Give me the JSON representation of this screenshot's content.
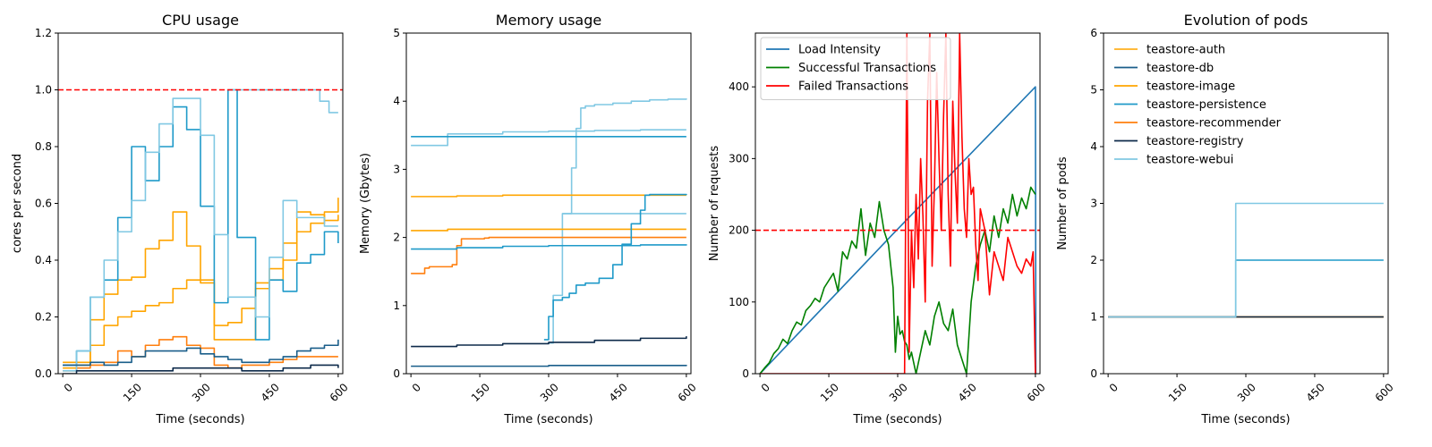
{
  "chart_data": [
    {
      "type": "line",
      "title": "CPU usage",
      "xlabel": "Time (seconds)",
      "ylabel": "cores per second",
      "xlim": [
        -10,
        610
      ],
      "ylim": [
        0,
        1.2
      ],
      "xticks": [
        0,
        150,
        300,
        450,
        600
      ],
      "yticks": [
        0,
        0.2,
        0.4,
        0.6,
        0.8,
        1.0,
        1.2
      ],
      "ytick_labels": [
        "0.0",
        "0.2",
        "0.4",
        "0.6",
        "0.8",
        "1.0",
        "1.2"
      ],
      "step": true,
      "hline": {
        "y": 1.0,
        "color": "#ff0000"
      },
      "legend": null,
      "series": [
        {
          "color": "#ffa500",
          "x": [
            0,
            30,
            60,
            90,
            120,
            150,
            180,
            210,
            240,
            270,
            300,
            330,
            360,
            390,
            420,
            450,
            480,
            510,
            540,
            570,
            600
          ],
          "y": [
            0.04,
            0.04,
            0.19,
            0.28,
            0.33,
            0.34,
            0.44,
            0.47,
            0.57,
            0.45,
            0.33,
            0.12,
            0.12,
            0.12,
            0.32,
            0.33,
            0.4,
            0.57,
            0.56,
            0.54,
            0.56
          ]
        },
        {
          "color": "#ffa500",
          "x": [
            0,
            30,
            60,
            90,
            120,
            150,
            180,
            210,
            240,
            270,
            300,
            330,
            360,
            390,
            420,
            450,
            480,
            510,
            540,
            570,
            600
          ],
          "y": [
            0.02,
            0.03,
            0.1,
            0.17,
            0.2,
            0.22,
            0.24,
            0.25,
            0.3,
            0.33,
            0.32,
            0.17,
            0.18,
            0.23,
            0.3,
            0.37,
            0.46,
            0.5,
            0.53,
            0.57,
            0.62
          ]
        },
        {
          "color": "#ff7f0e",
          "x": [
            0,
            30,
            60,
            90,
            120,
            150,
            180,
            210,
            240,
            270,
            300,
            330,
            360,
            390,
            420,
            450,
            480,
            510,
            540,
            570,
            600
          ],
          "y": [
            0.01,
            0.02,
            0.03,
            0.04,
            0.08,
            0.06,
            0.1,
            0.12,
            0.13,
            0.1,
            0.09,
            0.03,
            0.02,
            0.03,
            0.03,
            0.04,
            0.05,
            0.06,
            0.06,
            0.06,
            0.06
          ]
        },
        {
          "color": "#1f9ac9",
          "x": [
            0,
            30,
            60,
            90,
            120,
            150,
            180,
            210,
            240,
            270,
            300,
            330,
            355,
            360,
            380,
            420,
            450,
            480,
            510,
            540,
            570,
            600
          ],
          "y": [
            0.03,
            0.08,
            0.27,
            0.33,
            0.55,
            0.8,
            0.68,
            0.8,
            0.94,
            0.86,
            0.59,
            0.25,
            0.25,
            1.0,
            0.48,
            0.12,
            0.33,
            0.29,
            0.39,
            0.42,
            0.5,
            0.46
          ]
        },
        {
          "color": "#80c8e3",
          "x": [
            0,
            30,
            60,
            90,
            120,
            150,
            180,
            210,
            240,
            270,
            300,
            330,
            360,
            390,
            420,
            450,
            480,
            510,
            540,
            570,
            600
          ],
          "y": [
            0.01,
            0.08,
            0.27,
            0.4,
            0.5,
            0.61,
            0.78,
            0.88,
            0.97,
            0.97,
            0.84,
            0.49,
            0.27,
            0.27,
            0.2,
            0.41,
            0.61,
            0.55,
            0.55,
            0.52,
            0.52
          ]
        },
        {
          "color": "#80c8e3",
          "x": [
            360,
            400,
            440,
            480,
            520,
            560,
            580,
            600
          ],
          "y": [
            1.0,
            1.0,
            1.0,
            1.0,
            1.0,
            0.96,
            0.92,
            0.92
          ]
        },
        {
          "color": "#1a5e8a",
          "x": [
            0,
            30,
            60,
            90,
            120,
            150,
            180,
            210,
            240,
            270,
            300,
            330,
            360,
            390,
            420,
            450,
            480,
            510,
            540,
            570,
            600
          ],
          "y": [
            0.03,
            0.03,
            0.04,
            0.03,
            0.04,
            0.06,
            0.08,
            0.08,
            0.08,
            0.09,
            0.07,
            0.06,
            0.05,
            0.04,
            0.04,
            0.05,
            0.06,
            0.08,
            0.09,
            0.1,
            0.12
          ]
        },
        {
          "color": "#0d2a4a",
          "x": [
            0,
            30,
            60,
            90,
            120,
            150,
            180,
            210,
            240,
            270,
            300,
            330,
            360,
            390,
            420,
            450,
            480,
            510,
            540,
            570,
            600
          ],
          "y": [
            0.0,
            0.01,
            0.01,
            0.01,
            0.01,
            0.01,
            0.01,
            0.01,
            0.02,
            0.02,
            0.02,
            0.02,
            0.02,
            0.01,
            0.01,
            0.01,
            0.02,
            0.02,
            0.03,
            0.03,
            0.02
          ]
        }
      ]
    },
    {
      "type": "line",
      "title": "Memory usage",
      "xlabel": "Time (seconds)",
      "ylabel": "Memory (Gbytes)",
      "xlim": [
        -10,
        610
      ],
      "ylim": [
        0,
        5
      ],
      "xticks": [
        0,
        150,
        300,
        450,
        600
      ],
      "yticks": [
        0,
        1,
        2,
        3,
        4,
        5
      ],
      "step": true,
      "legend": null,
      "series": [
        {
          "color": "#80c8e3",
          "x": [
            0,
            60,
            80,
            200,
            300,
            400,
            500,
            600
          ],
          "y": [
            3.35,
            3.35,
            3.52,
            3.55,
            3.56,
            3.57,
            3.58,
            3.58
          ]
        },
        {
          "color": "#80c8e3",
          "x": [
            330,
            350,
            360,
            370,
            380,
            400,
            440,
            480,
            520,
            560,
            600
          ],
          "y": [
            2.35,
            3.02,
            3.6,
            3.9,
            3.93,
            3.95,
            3.97,
            4.0,
            4.02,
            4.03,
            4.04
          ]
        },
        {
          "color": "#80c8e3",
          "x": [
            300,
            310,
            320,
            330,
            600
          ],
          "y": [
            0.45,
            1.15,
            1.15,
            2.35,
            2.35
          ]
        },
        {
          "color": "#ffa500",
          "x": [
            0,
            100,
            200,
            300,
            400,
            500,
            600
          ],
          "y": [
            2.6,
            2.61,
            2.62,
            2.62,
            2.62,
            2.62,
            2.62
          ]
        },
        {
          "color": "#ffa500",
          "x": [
            0,
            80,
            200,
            300,
            400,
            500,
            600
          ],
          "y": [
            2.1,
            2.12,
            2.12,
            2.12,
            2.12,
            2.12,
            2.12
          ]
        },
        {
          "color": "#ff7f0e",
          "x": [
            0,
            30,
            40,
            90,
            100,
            110,
            160,
            170,
            300,
            400,
            500,
            600
          ],
          "y": [
            1.47,
            1.55,
            1.57,
            1.6,
            1.88,
            1.98,
            1.99,
            2.0,
            2.0,
            2.0,
            2.0,
            2.0
          ]
        },
        {
          "color": "#1f9ac9",
          "x": [
            0,
            100,
            200,
            300,
            400,
            500,
            600
          ],
          "y": [
            1.83,
            1.85,
            1.87,
            1.88,
            1.88,
            1.89,
            1.9
          ]
        },
        {
          "color": "#1f9ac9",
          "x": [
            290,
            300,
            310,
            330,
            345,
            360,
            380,
            410,
            440,
            460,
            480,
            500,
            510,
            520,
            600
          ],
          "y": [
            0.5,
            0.84,
            1.08,
            1.12,
            1.18,
            1.3,
            1.33,
            1.4,
            1.6,
            1.9,
            2.2,
            2.4,
            2.62,
            2.63,
            2.64
          ]
        },
        {
          "color": "#1f9ac9",
          "x": [
            0,
            100,
            200,
            300,
            400,
            500,
            600
          ],
          "y": [
            3.48,
            3.48,
            3.48,
            3.48,
            3.48,
            3.48,
            3.48
          ]
        },
        {
          "color": "#0d2a4a",
          "x": [
            0,
            100,
            200,
            300,
            400,
            500,
            600
          ],
          "y": [
            0.4,
            0.42,
            0.44,
            0.46,
            0.49,
            0.52,
            0.55
          ]
        },
        {
          "color": "#1a5e8a",
          "x": [
            0,
            100,
            200,
            300,
            400,
            500,
            600
          ],
          "y": [
            0.11,
            0.11,
            0.11,
            0.12,
            0.12,
            0.12,
            0.13
          ]
        }
      ]
    },
    {
      "type": "line",
      "title": "",
      "xlabel": "Time (seconds)",
      "ylabel": "Number of requests",
      "xlim": [
        -10,
        610
      ],
      "ylim": [
        0,
        475
      ],
      "xticks": [
        0,
        150,
        300,
        450,
        600
      ],
      "yticks": [
        0,
        100,
        200,
        300,
        400
      ],
      "step": false,
      "hline": {
        "y": 200,
        "color": "#ff0000"
      },
      "legend": "top-left",
      "series": [
        {
          "name": "Load Intensity",
          "color": "#1f77b4",
          "x": [
            0,
            290,
            600,
            601
          ],
          "y": [
            0,
            195,
            400,
            0
          ]
        },
        {
          "name": "Successful Transactions",
          "color": "#008000",
          "x": [
            0,
            10,
            20,
            30,
            40,
            50,
            60,
            70,
            80,
            90,
            100,
            110,
            120,
            130,
            140,
            150,
            160,
            170,
            180,
            190,
            200,
            210,
            220,
            230,
            240,
            250,
            260,
            270,
            280,
            290,
            295,
            300,
            305,
            310,
            315,
            320,
            325,
            330,
            340,
            350,
            360,
            370,
            380,
            390,
            400,
            410,
            420,
            430,
            440,
            450,
            460,
            470,
            480,
            490,
            500,
            510,
            520,
            530,
            540,
            550,
            560,
            570,
            580,
            590,
            600
          ],
          "y": [
            0,
            8,
            15,
            28,
            35,
            48,
            42,
            60,
            72,
            68,
            88,
            95,
            105,
            100,
            120,
            130,
            140,
            115,
            170,
            160,
            185,
            175,
            230,
            165,
            210,
            190,
            240,
            200,
            180,
            120,
            30,
            80,
            55,
            60,
            45,
            40,
            20,
            30,
            0,
            30,
            60,
            40,
            80,
            100,
            70,
            60,
            90,
            40,
            20,
            0,
            100,
            150,
            180,
            200,
            170,
            220,
            190,
            230,
            210,
            250,
            220,
            245,
            230,
            260,
            250
          ]
        },
        {
          "name": "Failed Transactions",
          "color": "#ff0000",
          "x": [
            0,
            315,
            320,
            325,
            330,
            335,
            340,
            345,
            350,
            355,
            360,
            365,
            370,
            375,
            380,
            385,
            390,
            395,
            400,
            405,
            410,
            415,
            420,
            425,
            430,
            435,
            440,
            445,
            450,
            455,
            460,
            465,
            470,
            475,
            480,
            490,
            500,
            510,
            520,
            530,
            540,
            550,
            560,
            570,
            580,
            590,
            595,
            600
          ],
          "y": [
            0,
            0,
            475,
            30,
            200,
            120,
            250,
            160,
            300,
            220,
            100,
            380,
            475,
            150,
            260,
            420,
            300,
            200,
            360,
            475,
            250,
            150,
            380,
            280,
            210,
            475,
            330,
            230,
            190,
            300,
            250,
            260,
            180,
            130,
            230,
            200,
            110,
            170,
            150,
            130,
            190,
            170,
            150,
            140,
            160,
            150,
            170,
            0
          ]
        }
      ]
    },
    {
      "type": "line",
      "title": "Evolution of pods",
      "xlabel": "Time (seconds)",
      "ylabel": "Number of pods",
      "xlim": [
        -10,
        610
      ],
      "ylim": [
        0,
        6
      ],
      "xticks": [
        0,
        150,
        300,
        450,
        600
      ],
      "yticks": [
        0,
        1,
        2,
        3,
        4,
        5,
        6
      ],
      "step": true,
      "legend": "top-left",
      "series": [
        {
          "name": "teastore-auth",
          "color": "#ffb01f",
          "x": [
            0,
            600
          ],
          "y": [
            1,
            1
          ]
        },
        {
          "name": "teastore-db",
          "color": "#1a5e8a",
          "x": [
            0,
            600
          ],
          "y": [
            1,
            1
          ]
        },
        {
          "name": "teastore-image",
          "color": "#ffa500",
          "x": [
            0,
            600
          ],
          "y": [
            1,
            1
          ]
        },
        {
          "name": "teastore-persistence",
          "color": "#1f9ac9",
          "x": [
            0,
            278,
            600
          ],
          "y": [
            1,
            2,
            2
          ]
        },
        {
          "name": "teastore-recommender",
          "color": "#ff7f0e",
          "x": [
            0,
            600
          ],
          "y": [
            1,
            1
          ]
        },
        {
          "name": "teastore-registry",
          "color": "#0d2a4a",
          "x": [
            0,
            600
          ],
          "y": [
            1,
            1
          ]
        },
        {
          "name": "teastore-webui",
          "color": "#80c8e3",
          "x": [
            0,
            278,
            600
          ],
          "y": [
            1,
            3,
            3
          ]
        }
      ]
    }
  ]
}
